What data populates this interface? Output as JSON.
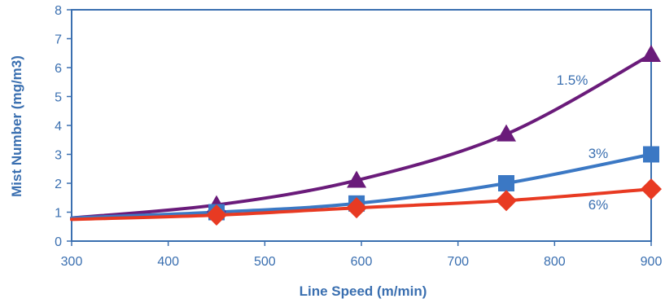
{
  "chart_data": {
    "type": "line",
    "xlabel": "Line Speed (m/min)",
    "ylabel": "Mist Number (mg/m3)",
    "xlim": [
      300,
      900
    ],
    "ylim": [
      0,
      8
    ],
    "xticks": [
      "300",
      "400",
      "500",
      "600",
      "700",
      "800",
      "900"
    ],
    "yticks": [
      "0",
      "1",
      "2",
      "3",
      "4",
      "5",
      "6",
      "7",
      "8"
    ],
    "grid": false,
    "legend": "none",
    "axis_color": "#3a6fb0",
    "series": [
      {
        "name": "1.5%",
        "color": "#6a1b7a",
        "marker": "triangle",
        "curve": [
          [
            300,
            0.8
          ],
          [
            450,
            1.25
          ],
          [
            595,
            2.1
          ],
          [
            750,
            3.7
          ],
          [
            900,
            6.45
          ]
        ],
        "markers": [
          [
            450,
            1.25
          ],
          [
            595,
            2.1
          ],
          [
            750,
            3.7
          ],
          [
            900,
            6.45
          ]
        ]
      },
      {
        "name": "3%",
        "color": "#3b78c4",
        "marker": "square",
        "curve": [
          [
            300,
            0.8
          ],
          [
            450,
            1.0
          ],
          [
            595,
            1.3
          ],
          [
            750,
            2.0
          ],
          [
            900,
            3.0
          ]
        ],
        "markers": [
          [
            450,
            1.0
          ],
          [
            595,
            1.3
          ],
          [
            750,
            2.0
          ],
          [
            900,
            3.0
          ]
        ]
      },
      {
        "name": "6%",
        "color": "#e83a22",
        "marker": "diamond",
        "curve": [
          [
            300,
            0.75
          ],
          [
            450,
            0.9
          ],
          [
            595,
            1.15
          ],
          [
            750,
            1.4
          ],
          [
            900,
            1.8
          ]
        ],
        "markers": [
          [
            450,
            0.9
          ],
          [
            595,
            1.15
          ],
          [
            750,
            1.4
          ],
          [
            900,
            1.8
          ]
        ]
      }
    ]
  }
}
